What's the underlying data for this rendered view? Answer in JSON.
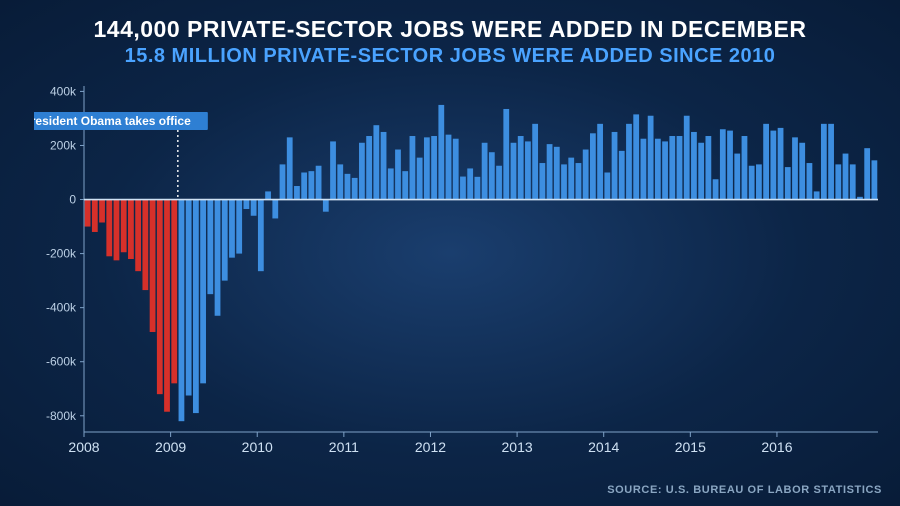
{
  "titles": {
    "main": "144,000 PRIVATE-SECTOR JOBS WERE ADDED IN DECEMBER",
    "sub": "15.8 MILLION PRIVATE-SECTOR JOBS WERE ADDED SINCE 2010",
    "main_fontsize": 23,
    "sub_fontsize": 20,
    "main_color": "#ffffff",
    "sub_color": "#4aa3ff"
  },
  "annotation": {
    "label": "President Obama takes office",
    "bg": "#2e7fd3",
    "text_color": "#ffffff",
    "fontsize": 12,
    "index": 13,
    "line_color": "#ffffff"
  },
  "source": {
    "text": "SOURCE: U.S. BUREAU OF LABOR STATISTICS",
    "color": "#8aa6c2",
    "fontsize": 11
  },
  "chart": {
    "type": "bar",
    "ylim": [
      -860,
      420
    ],
    "yticks": [
      -800,
      -600,
      -400,
      -200,
      0,
      200,
      400
    ],
    "ytick_labels": [
      "-800k",
      "-600k",
      "-400k",
      "-200k",
      "0",
      "200k",
      "400k"
    ],
    "ytick_fontsize": 12,
    "ytick_color": "#bcd0e5",
    "axis_color": "#7fa2c8",
    "zero_line_color": "#cfe1f3",
    "zero_line_width": 1.6,
    "bar_color_pre": "#d6302a",
    "bar_color_post": "#3d8ee0",
    "bar_gap_ratio": 0.2,
    "pre_count": 13,
    "x_year_labels": [
      "2008",
      "2009",
      "2010",
      "2011",
      "2012",
      "2013",
      "2014",
      "2015",
      "2016"
    ],
    "x_year_fontsize": 14,
    "x_year_color": "#cfe1f3",
    "values": [
      -100,
      -120,
      -85,
      -210,
      -225,
      -195,
      -220,
      -265,
      -335,
      -490,
      -720,
      -785,
      -680,
      -820,
      -725,
      -790,
      -680,
      -350,
      -430,
      -300,
      -215,
      -200,
      -35,
      -60,
      -265,
      30,
      -70,
      130,
      230,
      50,
      100,
      105,
      125,
      -45,
      215,
      130,
      95,
      80,
      210,
      235,
      275,
      250,
      115,
      185,
      105,
      235,
      155,
      230,
      235,
      350,
      240,
      225,
      85,
      115,
      84,
      210,
      175,
      125,
      335,
      210,
      235,
      215,
      280,
      135,
      205,
      195,
      130,
      155,
      135,
      185,
      245,
      280,
      100,
      250,
      180,
      280,
      315,
      225,
      310,
      225,
      215,
      235,
      235,
      310,
      250,
      210,
      235,
      75,
      260,
      255,
      170,
      235,
      125,
      130,
      280,
      255,
      265,
      120,
      230,
      210,
      135,
      30,
      280,
      280,
      130,
      170,
      130,
      10,
      190,
      145
    ]
  }
}
